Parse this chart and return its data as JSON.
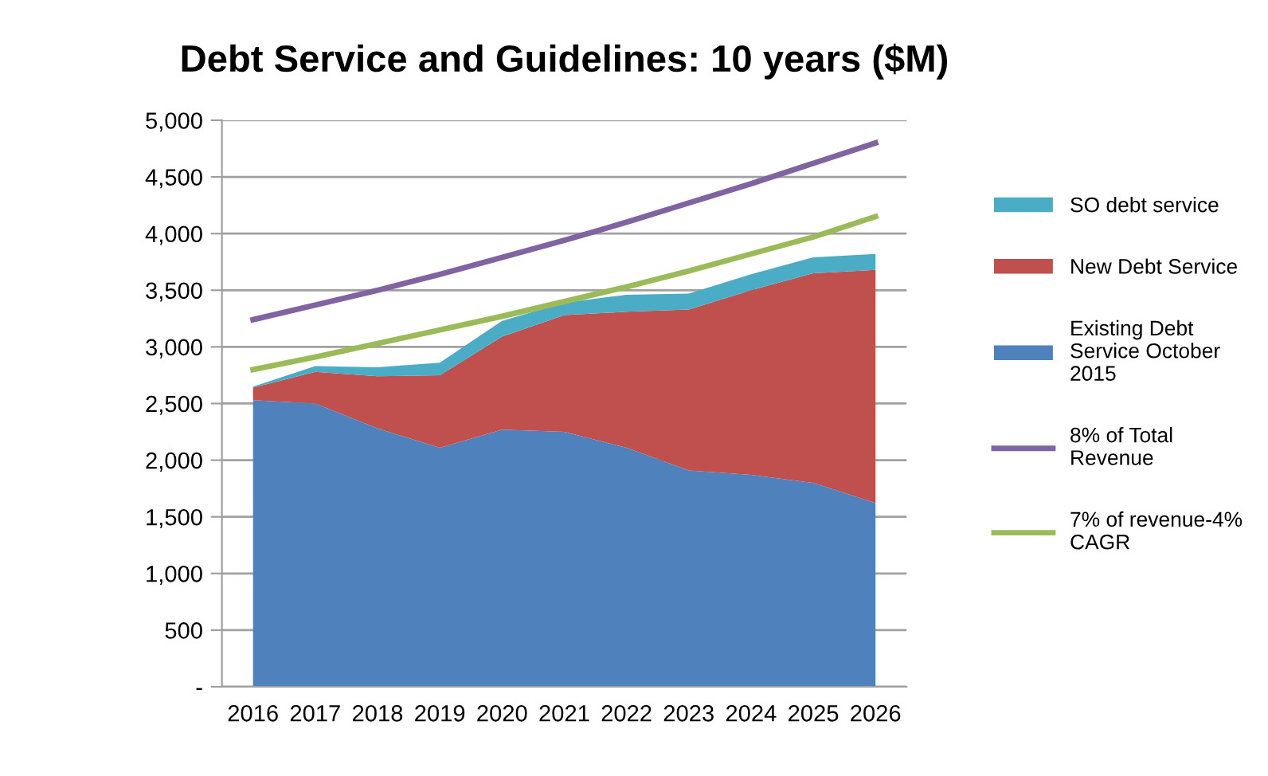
{
  "chart_data": {
    "type": "area",
    "title": "Debt Service and Guidelines: 10 years ($M)",
    "categories": [
      "2016",
      "2017",
      "2018",
      "2019",
      "2020",
      "2021",
      "2022",
      "2023",
      "2024",
      "2025",
      "2026"
    ],
    "stacked": true,
    "series": [
      {
        "name": "Existing Debt Service October 2015",
        "color": "#4f81bd",
        "values": [
          2530,
          2500,
          2280,
          2110,
          2270,
          2250,
          2110,
          1910,
          1870,
          1800,
          1620
        ]
      },
      {
        "name": "New Debt Service",
        "color": "#c0504d",
        "values": [
          110,
          280,
          460,
          640,
          820,
          1030,
          1200,
          1420,
          1630,
          1850,
          2060
        ]
      },
      {
        "name": "SO debt service",
        "color": "#4bacc6",
        "values": [
          10,
          50,
          80,
          110,
          140,
          110,
          150,
          140,
          140,
          140,
          140
        ]
      },
      {
        "name": "8% of Total Revenue",
        "type": "line",
        "color": "#8064a2",
        "values": [
          3240,
          3370,
          3500,
          3640,
          3790,
          3940,
          4100,
          4270,
          4440,
          4620,
          4800
        ]
      },
      {
        "name": "7% of revenue-4% CAGR",
        "type": "line",
        "color": "#9bbb59",
        "values": [
          2800,
          2910,
          3030,
          3150,
          3270,
          3400,
          3530,
          3670,
          3820,
          3970,
          4150
        ]
      }
    ],
    "ylim": [
      0,
      5000
    ],
    "yticks": [
      {
        "value": 0,
        "label": "-"
      },
      {
        "value": 500,
        "label": "500"
      },
      {
        "value": 1000,
        "label": "1,000"
      },
      {
        "value": 1500,
        "label": "1,500"
      },
      {
        "value": 2000,
        "label": "2,000"
      },
      {
        "value": 2500,
        "label": "2,500"
      },
      {
        "value": 3000,
        "label": "3,000"
      },
      {
        "value": 3500,
        "label": "3,500"
      },
      {
        "value": 4000,
        "label": "4,000"
      },
      {
        "value": 4500,
        "label": "4,500"
      },
      {
        "value": 5000,
        "label": "5,000"
      }
    ],
    "grid": "y",
    "legend": "right",
    "marker": "none"
  }
}
